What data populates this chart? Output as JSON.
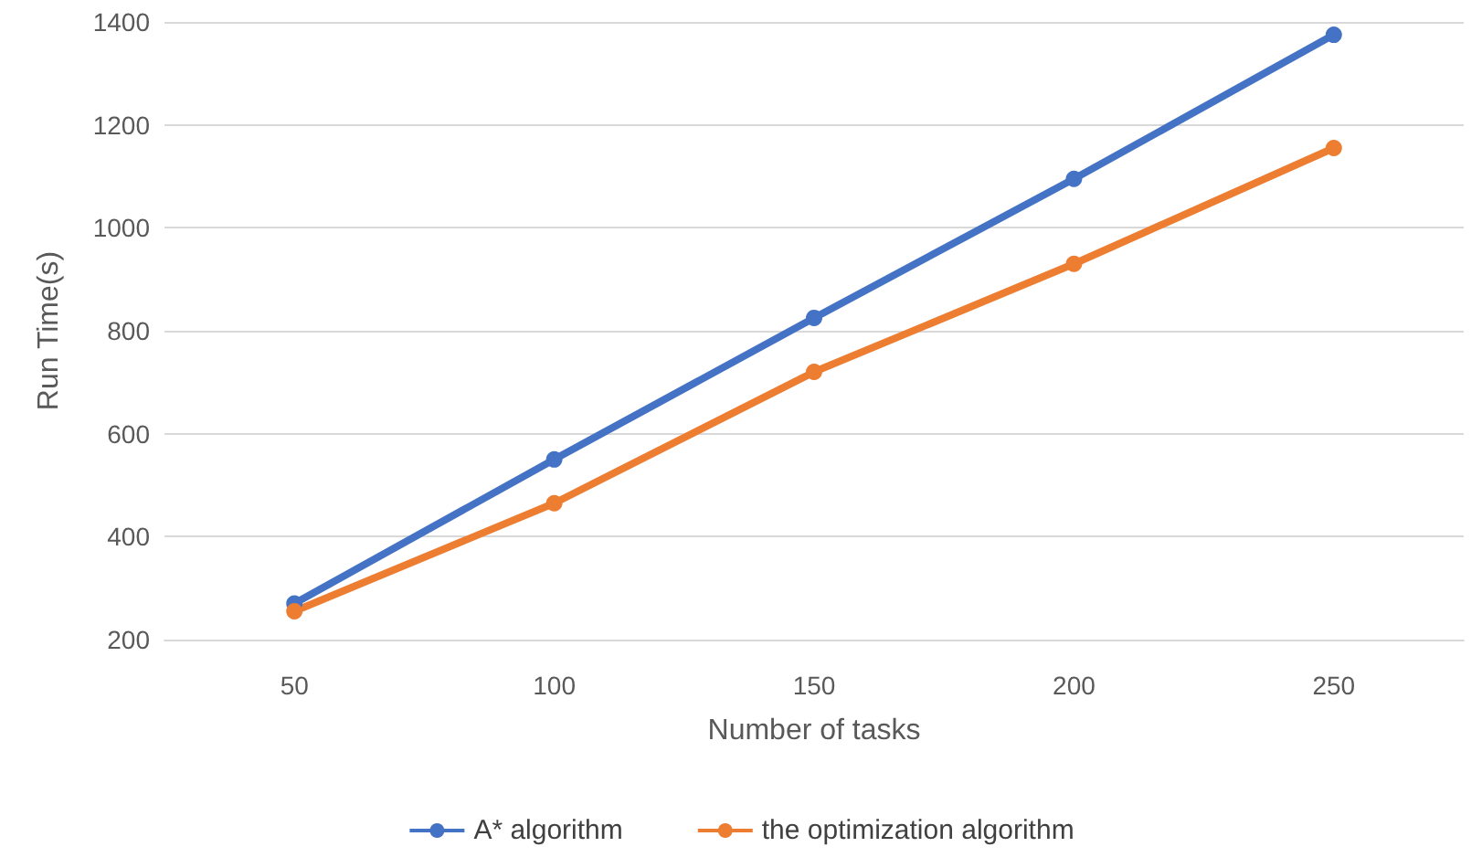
{
  "chart_data": {
    "type": "line",
    "xlabel": "Number of tasks",
    "ylabel": "Run Time(s)",
    "categories": [
      "50",
      "100",
      "150",
      "200",
      "250"
    ],
    "series": [
      {
        "name": "A* algorithm",
        "color": "#4472c4",
        "values": [
          270,
          550,
          825,
          1095,
          1375
        ]
      },
      {
        "name": "the optimization algorithm",
        "color": "#ed7d31",
        "values": [
          255,
          465,
          720,
          930,
          1155
        ]
      }
    ],
    "ylim": [
      200,
      1400
    ],
    "yticks": [
      200,
      400,
      600,
      800,
      1000,
      1200,
      1400
    ],
    "grid": "y",
    "legend": "bottom",
    "marker": "circle"
  }
}
